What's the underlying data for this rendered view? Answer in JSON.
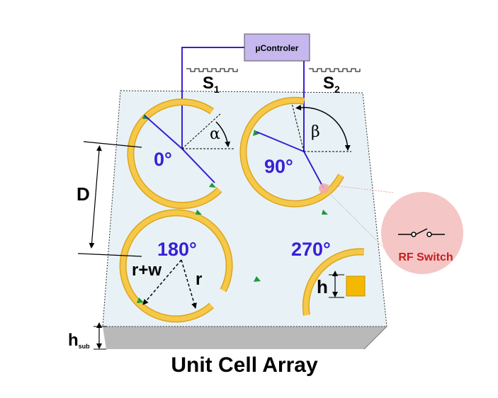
{
  "diagram": {
    "controller_label": "µControler",
    "signal_1": {
      "main": "S",
      "sub": "1"
    },
    "signal_2": {
      "main": "S",
      "sub": "2"
    },
    "cells": [
      {
        "phase": "0°"
      },
      {
        "phase": "90°"
      },
      {
        "phase": "180°"
      },
      {
        "phase": "270°"
      }
    ],
    "alpha_label": "α",
    "beta_label": "β",
    "spacing_label": "D",
    "outer_radius_label": "r+w",
    "inner_radius_label": "r",
    "height_label": "h",
    "substrate_height_label": {
      "main": "h",
      "sub": "sub"
    },
    "rf_switch_label": "RF Switch",
    "caption": "Unit Cell Array",
    "colors": {
      "substrate_top": "#e8f2f6",
      "substrate_side": "#b8b8b8",
      "ring": "#f7c847",
      "ring_edge": "#d9a520",
      "controller_fill": "#c6b7ee",
      "control_line": "#3a1fd6",
      "phase_text": "#3a1fd6",
      "rf_circle": "#f5c4c4",
      "rf_text": "#c81e1e",
      "switch_arrow": "#1a9a3a"
    }
  }
}
